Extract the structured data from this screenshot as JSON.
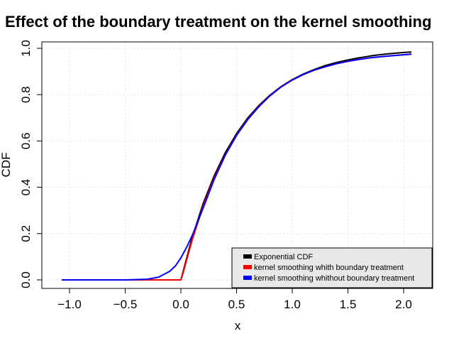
{
  "chart_data": {
    "type": "line",
    "title": "Effect of the boundary treatment on the kernel smoothing",
    "xlabel": "x",
    "ylabel": "CDF",
    "xlim": [
      -1.1,
      2.1
    ],
    "ylim": [
      0,
      1
    ],
    "xticks": [
      -1.0,
      -0.5,
      0.0,
      0.5,
      1.0,
      1.5,
      2.0
    ],
    "xtick_labels": [
      "−1.0",
      "−0.5",
      "0.0",
      "0.5",
      "1.0",
      "1.5",
      "2.0"
    ],
    "yticks": [
      0.0,
      0.2,
      0.4,
      0.6,
      0.8,
      1.0
    ],
    "ytick_labels": [
      "0.0",
      "0.2",
      "0.4",
      "0.6",
      "0.8",
      "1.0"
    ],
    "grid": true,
    "legend_position": "bottom-right",
    "series": [
      {
        "name": "Exponential CDF",
        "color": "#000000",
        "x": [
          -1.07,
          -0.5,
          -0.1,
          0.0,
          0.1,
          0.2,
          0.3,
          0.4,
          0.5,
          0.6,
          0.7,
          0.8,
          0.9,
          1.0,
          1.1,
          1.2,
          1.3,
          1.4,
          1.5,
          1.6,
          1.7,
          1.8,
          1.9,
          2.0,
          2.07
        ],
        "y": [
          0.0,
          0.0,
          0.0,
          0.0,
          0.181,
          0.33,
          0.451,
          0.551,
          0.632,
          0.699,
          0.753,
          0.798,
          0.835,
          0.865,
          0.889,
          0.909,
          0.926,
          0.939,
          0.95,
          0.959,
          0.967,
          0.973,
          0.978,
          0.982,
          0.984
        ]
      },
      {
        "name": "kernel smoothing  whith boundary treatment",
        "color": "#ff0000",
        "x": [
          -1.07,
          -0.5,
          -0.1,
          -0.02,
          0.0,
          0.02,
          0.1,
          0.2,
          0.3,
          0.4,
          0.5,
          0.6,
          0.7,
          0.8,
          0.9,
          1.0,
          1.1,
          1.2,
          1.3,
          1.4,
          1.5,
          1.6,
          1.7,
          1.8,
          1.9,
          2.0,
          2.07
        ],
        "y": [
          0.0,
          0.0,
          0.0,
          0.0,
          0.0,
          0.03,
          0.17,
          0.318,
          0.44,
          0.542,
          0.626,
          0.694,
          0.75,
          0.796,
          0.834,
          0.864,
          0.887,
          0.906,
          0.921,
          0.934,
          0.944,
          0.952,
          0.959,
          0.964,
          0.968,
          0.972,
          0.975
        ]
      },
      {
        "name": "kernel smoothing whithout boundary treatment",
        "color": "#0000ff",
        "x": [
          -1.07,
          -0.5,
          -0.3,
          -0.2,
          -0.1,
          -0.05,
          0.0,
          0.05,
          0.1,
          0.2,
          0.3,
          0.4,
          0.5,
          0.6,
          0.7,
          0.8,
          0.9,
          1.0,
          1.1,
          1.2,
          1.3,
          1.4,
          1.5,
          1.6,
          1.7,
          1.8,
          1.9,
          2.0,
          2.07
        ],
        "y": [
          0.0,
          0.0,
          0.003,
          0.012,
          0.037,
          0.06,
          0.095,
          0.14,
          0.19,
          0.31,
          0.435,
          0.54,
          0.624,
          0.692,
          0.748,
          0.795,
          0.833,
          0.863,
          0.887,
          0.906,
          0.921,
          0.934,
          0.944,
          0.952,
          0.959,
          0.964,
          0.968,
          0.972,
          0.975
        ]
      }
    ]
  }
}
